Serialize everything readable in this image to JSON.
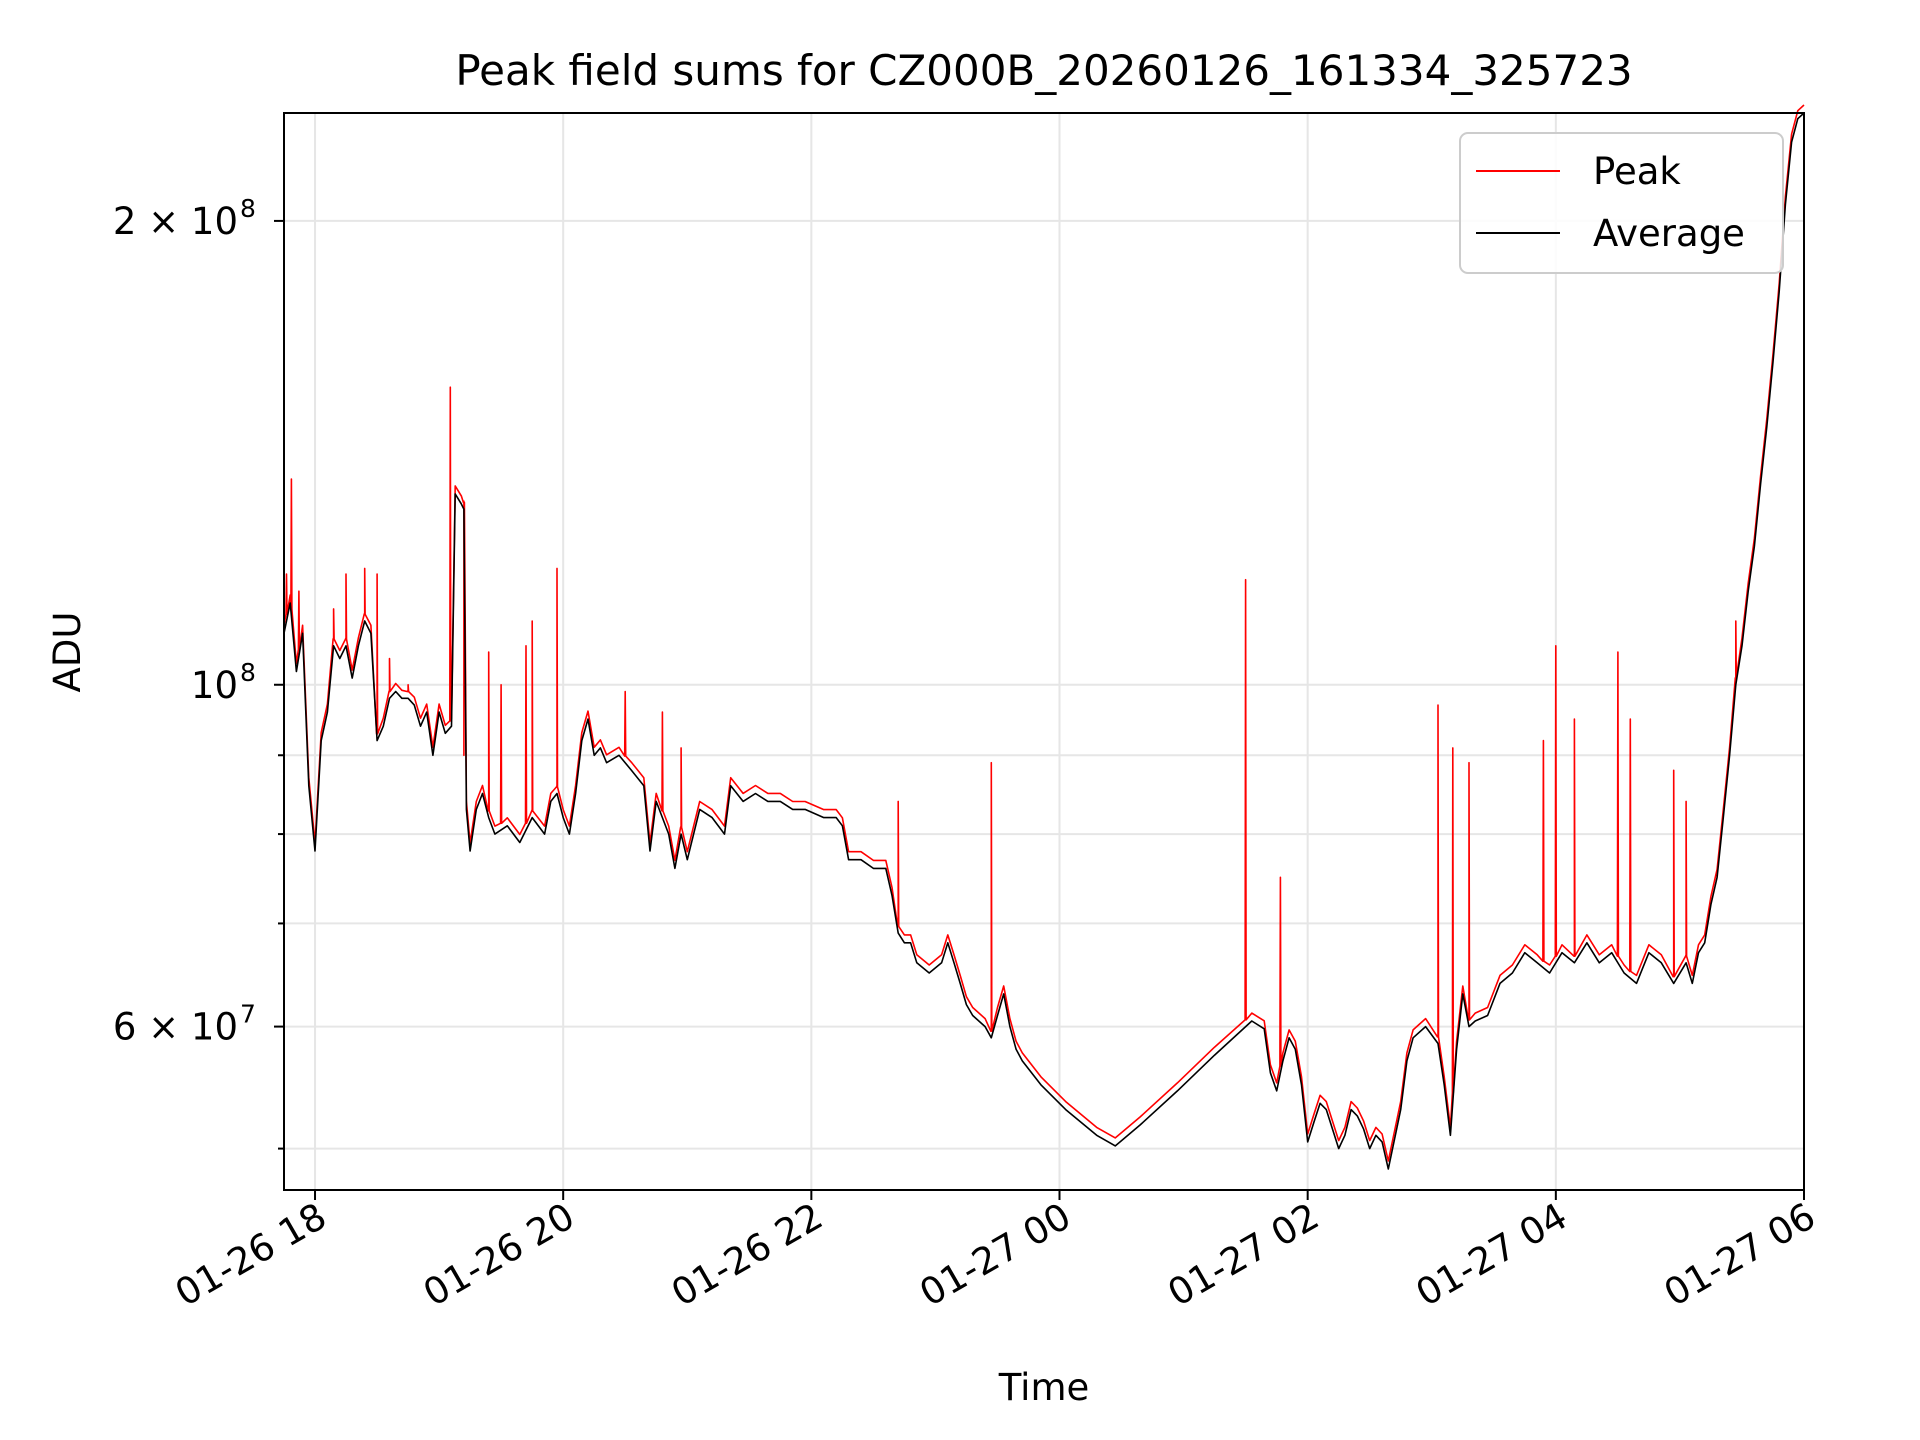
{
  "chart_data": {
    "type": "line",
    "title": "Peak field sums for CZ000B_20260126_161334_325723",
    "xlabel": "Time",
    "ylabel": "ADU",
    "xscale": "time (hours since 01-26 17:45)",
    "yscale": "log",
    "xlim": [
      0,
      12.25
    ],
    "ylim": [
      47000000,
      235000000
    ],
    "grid": true,
    "legend": {
      "placement": "upper right",
      "entries": [
        "Peak",
        "Average"
      ]
    },
    "x_ticks": [
      {
        "value": 0.25,
        "label": "01-26 18"
      },
      {
        "value": 2.25,
        "label": "01-26 20"
      },
      {
        "value": 4.25,
        "label": "01-26 22"
      },
      {
        "value": 6.25,
        "label": "01-27 00"
      },
      {
        "value": 8.25,
        "label": "01-27 02"
      },
      {
        "value": 10.25,
        "label": "01-27 04"
      },
      {
        "value": 12.25,
        "label": "01-27 06"
      }
    ],
    "y_ticks_major": [
      {
        "value": 200000000,
        "base": "2 × 10",
        "exp": "8"
      },
      {
        "value": 100000000,
        "base": "10",
        "exp": "8"
      },
      {
        "value": 60000000,
        "base": "6 × 10",
        "exp": "7"
      }
    ],
    "y_ticks_minor": [
      50000000,
      70000000,
      80000000,
      90000000
    ],
    "series": [
      {
        "name": "Average",
        "color": "#000000",
        "points": [
          [
            0.0,
            108
          ],
          [
            0.05,
            113
          ],
          [
            0.1,
            102
          ],
          [
            0.15,
            108
          ],
          [
            0.2,
            86
          ],
          [
            0.25,
            78
          ],
          [
            0.3,
            92
          ],
          [
            0.35,
            96
          ],
          [
            0.4,
            106
          ],
          [
            0.45,
            104
          ],
          [
            0.5,
            106
          ],
          [
            0.55,
            101
          ],
          [
            0.6,
            106
          ],
          [
            0.65,
            110
          ],
          [
            0.7,
            108
          ],
          [
            0.75,
            92
          ],
          [
            0.8,
            94
          ],
          [
            0.85,
            98
          ],
          [
            0.9,
            99
          ],
          [
            0.95,
            98
          ],
          [
            1.0,
            98
          ],
          [
            1.05,
            97
          ],
          [
            1.1,
            94
          ],
          [
            1.15,
            96
          ],
          [
            1.2,
            90
          ],
          [
            1.25,
            96
          ],
          [
            1.3,
            93
          ],
          [
            1.35,
            94
          ],
          [
            1.38,
            133
          ],
          [
            1.43,
            131
          ],
          [
            1.45,
            130
          ],
          [
            1.47,
            83
          ],
          [
            1.5,
            78
          ],
          [
            1.55,
            83
          ],
          [
            1.6,
            85
          ],
          [
            1.65,
            82
          ],
          [
            1.7,
            80
          ],
          [
            1.8,
            81
          ],
          [
            1.9,
            79
          ],
          [
            2.0,
            82
          ],
          [
            2.1,
            80
          ],
          [
            2.15,
            84
          ],
          [
            2.2,
            85
          ],
          [
            2.25,
            82
          ],
          [
            2.3,
            80
          ],
          [
            2.35,
            85
          ],
          [
            2.4,
            92
          ],
          [
            2.45,
            95
          ],
          [
            2.5,
            90
          ],
          [
            2.55,
            91
          ],
          [
            2.6,
            89
          ],
          [
            2.7,
            90
          ],
          [
            2.8,
            88
          ],
          [
            2.9,
            86
          ],
          [
            2.95,
            78
          ],
          [
            3.0,
            84
          ],
          [
            3.1,
            80
          ],
          [
            3.15,
            76
          ],
          [
            3.2,
            80
          ],
          [
            3.25,
            77
          ],
          [
            3.35,
            83
          ],
          [
            3.45,
            82
          ],
          [
            3.55,
            80
          ],
          [
            3.6,
            86
          ],
          [
            3.7,
            84
          ],
          [
            3.8,
            85
          ],
          [
            3.9,
            84
          ],
          [
            4.0,
            84
          ],
          [
            4.1,
            83
          ],
          [
            4.2,
            83
          ],
          [
            4.35,
            82
          ],
          [
            4.45,
            82
          ],
          [
            4.5,
            81
          ],
          [
            4.55,
            77
          ],
          [
            4.65,
            77
          ],
          [
            4.75,
            76
          ],
          [
            4.85,
            76
          ],
          [
            4.9,
            73
          ],
          [
            4.95,
            69
          ],
          [
            5.0,
            68
          ],
          [
            5.05,
            68
          ],
          [
            5.1,
            66
          ],
          [
            5.2,
            65
          ],
          [
            5.3,
            66
          ],
          [
            5.35,
            68
          ],
          [
            5.4,
            66
          ],
          [
            5.45,
            64
          ],
          [
            5.5,
            62
          ],
          [
            5.55,
            61
          ],
          [
            5.65,
            60
          ],
          [
            5.7,
            59
          ],
          [
            5.75,
            61
          ],
          [
            5.8,
            63
          ],
          [
            5.85,
            60
          ],
          [
            5.9,
            58
          ],
          [
            5.95,
            57
          ],
          [
            6.1,
            55
          ],
          [
            6.3,
            53
          ],
          [
            6.55,
            51
          ],
          [
            6.7,
            50.2
          ],
          [
            6.9,
            51.8
          ],
          [
            7.2,
            54.5
          ],
          [
            7.5,
            57.5
          ],
          [
            7.8,
            60.5
          ],
          [
            7.9,
            59.8
          ],
          [
            7.95,
            56
          ],
          [
            8.0,
            54.5
          ],
          [
            8.05,
            57
          ],
          [
            8.1,
            59
          ],
          [
            8.15,
            58
          ],
          [
            8.2,
            55
          ],
          [
            8.25,
            50.5
          ],
          [
            8.3,
            52
          ],
          [
            8.35,
            53.5
          ],
          [
            8.4,
            53
          ],
          [
            8.5,
            50
          ],
          [
            8.55,
            51
          ],
          [
            8.6,
            53
          ],
          [
            8.65,
            52.5
          ],
          [
            8.7,
            51.5
          ],
          [
            8.75,
            50
          ],
          [
            8.8,
            51
          ],
          [
            8.85,
            50.5
          ],
          [
            8.9,
            48.5
          ],
          [
            9.0,
            53
          ],
          [
            9.05,
            57
          ],
          [
            9.1,
            59
          ],
          [
            9.2,
            60
          ],
          [
            9.3,
            58.5
          ],
          [
            9.35,
            55
          ],
          [
            9.4,
            51
          ],
          [
            9.45,
            58
          ],
          [
            9.5,
            63
          ],
          [
            9.55,
            60
          ],
          [
            9.6,
            60.5
          ],
          [
            9.7,
            61
          ],
          [
            9.8,
            64
          ],
          [
            9.9,
            65
          ],
          [
            10.0,
            67
          ],
          [
            10.1,
            66
          ],
          [
            10.2,
            65
          ],
          [
            10.3,
            67
          ],
          [
            10.4,
            66
          ],
          [
            10.5,
            68
          ],
          [
            10.6,
            66
          ],
          [
            10.7,
            67
          ],
          [
            10.8,
            65
          ],
          [
            10.9,
            64
          ],
          [
            11.0,
            67
          ],
          [
            11.1,
            66
          ],
          [
            11.2,
            64
          ],
          [
            11.3,
            66
          ],
          [
            11.35,
            64
          ],
          [
            11.4,
            67
          ],
          [
            11.45,
            68
          ],
          [
            11.5,
            72
          ],
          [
            11.55,
            75
          ],
          [
            11.6,
            82
          ],
          [
            11.65,
            90
          ],
          [
            11.7,
            100
          ],
          [
            11.75,
            106
          ],
          [
            11.8,
            115
          ],
          [
            11.85,
            123
          ],
          [
            11.9,
            135
          ],
          [
            11.95,
            147
          ],
          [
            12.0,
            162
          ],
          [
            12.05,
            180
          ],
          [
            12.1,
            205
          ],
          [
            12.15,
            225
          ],
          [
            12.2,
            233
          ],
          [
            12.25,
            235
          ]
        ]
      },
      {
        "name": "Peak",
        "color": "#ff0000",
        "spikes": [
          [
            0.02,
            118
          ],
          [
            0.06,
            136
          ],
          [
            0.12,
            115
          ],
          [
            0.4,
            112
          ],
          [
            0.5,
            118
          ],
          [
            0.65,
            119
          ],
          [
            0.75,
            118
          ],
          [
            0.85,
            104
          ],
          [
            1.0,
            100
          ],
          [
            1.34,
            156
          ],
          [
            1.45,
            90
          ],
          [
            1.65,
            105
          ],
          [
            1.75,
            100
          ],
          [
            1.95,
            106
          ],
          [
            2.0,
            110
          ],
          [
            2.2,
            119
          ],
          [
            2.75,
            99
          ],
          [
            3.05,
            96
          ],
          [
            3.2,
            91
          ],
          [
            4.95,
            84
          ],
          [
            5.7,
            89
          ],
          [
            7.75,
            117
          ],
          [
            8.03,
            75
          ],
          [
            9.3,
            97
          ],
          [
            9.42,
            91
          ],
          [
            9.55,
            89
          ],
          [
            10.15,
            92
          ],
          [
            10.25,
            106
          ],
          [
            10.4,
            95
          ],
          [
            10.75,
            105
          ],
          [
            10.85,
            95
          ],
          [
            11.2,
            88
          ],
          [
            11.3,
            84
          ],
          [
            11.7,
            110
          ]
        ]
      }
    ]
  }
}
